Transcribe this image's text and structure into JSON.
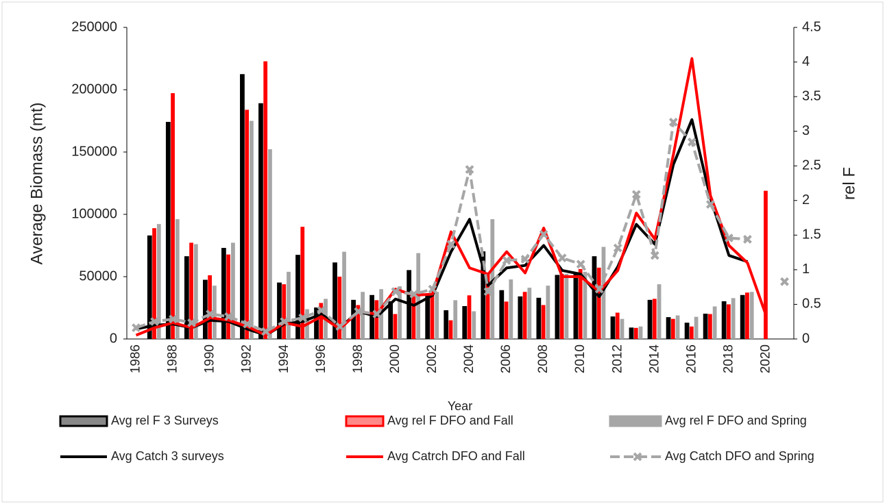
{
  "chart_data": {
    "type": "combo",
    "xlabel": "Year",
    "ylabel": "Average Biomass (mt)",
    "y2label": "rel F",
    "categories": [
      "1986",
      null,
      "1988",
      null,
      "1990",
      null,
      "1992",
      null,
      "1994",
      null,
      "1996",
      null,
      "1998",
      null,
      "2000",
      null,
      "2002",
      null,
      "2004",
      null,
      "2006",
      null,
      "2008",
      null,
      "2010",
      null,
      "2012",
      null,
      "2014",
      null,
      "2016",
      null,
      "2018",
      null,
      "2020",
      null
    ],
    "ylim": [
      0,
      250000
    ],
    "yticks": [
      0,
      50000,
      100000,
      150000,
      200000,
      250000
    ],
    "y2lim": [
      0,
      4.5
    ],
    "y2ticks": [
      0,
      0.5,
      1,
      1.5,
      2,
      2.5,
      3,
      3.5,
      4,
      4.5
    ],
    "series": [
      {
        "name": "Avg rel F 3 Surveys",
        "type": "bar",
        "axis": "y2",
        "color": "#000000",
        "values": [
          null,
          1.49,
          3.13,
          1.19,
          0.85,
          1.31,
          3.82,
          3.4,
          0.81,
          1.21,
          0.45,
          1.1,
          0.56,
          0.63,
          0.54,
          0.99,
          0.63,
          0.41,
          0.47,
          1.26,
          0.7,
          0.61,
          0.59,
          0.92,
          0.94,
          1.19,
          0.32,
          0.16,
          0.56,
          0.31,
          0.23,
          0.36,
          0.54,
          0.63,
          null,
          null
        ]
      },
      {
        "name": "Avg rel F DFO and Fall",
        "type": "bar",
        "axis": "y2",
        "color": "#ff0000",
        "values": [
          null,
          1.6,
          3.55,
          1.39,
          0.92,
          1.22,
          3.31,
          4.01,
          0.79,
          1.62,
          0.52,
          0.9,
          0.49,
          0.56,
          0.36,
          0.67,
          0.65,
          0.27,
          0.63,
          0.94,
          0.54,
          0.68,
          0.49,
          0.94,
          1.01,
          1.03,
          0.38,
          0.16,
          0.58,
          0.29,
          0.18,
          0.36,
          0.5,
          0.67,
          2.14,
          null
        ]
      },
      {
        "name": "Avg rel F DFO and Spring",
        "type": "bar",
        "axis": "y2",
        "color": "#a6a6a6",
        "values": [
          null,
          1.66,
          1.73,
          1.37,
          0.77,
          1.39,
          3.15,
          2.74,
          0.97,
          0.43,
          0.58,
          1.26,
          0.68,
          0.72,
          0.76,
          1.24,
          0.68,
          0.56,
          0.4,
          1.73,
          0.86,
          0.74,
          0.77,
          0.94,
          0.97,
          1.33,
          0.29,
          0.18,
          0.79,
          0.34,
          0.32,
          0.47,
          0.59,
          0.68,
          null,
          null
        ]
      },
      {
        "name": "Avg Catch 3 surveys",
        "type": "line",
        "color": "#000000",
        "values": [
          8000,
          11000,
          12000,
          9000,
          15000,
          14000,
          8000,
          3000,
          12000,
          14000,
          20000,
          9000,
          22000,
          18000,
          32000,
          27000,
          35000,
          70000,
          96000,
          43000,
          57000,
          59000,
          75000,
          55000,
          52000,
          34000,
          58000,
          92000,
          76000,
          140000,
          176000,
          113000,
          67000,
          62000,
          null,
          null
        ]
      },
      {
        "name": "Avg Catrch DFO and Fall",
        "type": "line",
        "color": "#ff0000",
        "values": [
          3000,
          9000,
          13000,
          9000,
          17000,
          15000,
          10000,
          3000,
          13000,
          10000,
          18000,
          8000,
          22000,
          20000,
          40000,
          35000,
          36000,
          86000,
          57000,
          52000,
          70000,
          53000,
          89000,
          50000,
          50000,
          38000,
          55000,
          101000,
          80000,
          148000,
          225000,
          115000,
          75000,
          61000,
          19000,
          null
        ]
      },
      {
        "name": "Avg Catch DFO and Spring",
        "type": "line",
        "color": "#a6a6a6",
        "marker": "x",
        "dashed": true,
        "values": [
          9000,
          14000,
          16000,
          13000,
          20000,
          18000,
          12000,
          6000,
          14000,
          17000,
          23000,
          10000,
          22000,
          20000,
          38000,
          36000,
          40000,
          76000,
          136000,
          38000,
          63000,
          64000,
          84000,
          65000,
          60000,
          40000,
          73000,
          116000,
          67000,
          174000,
          158000,
          108000,
          81000,
          80000,
          null,
          46000
        ]
      }
    ]
  }
}
